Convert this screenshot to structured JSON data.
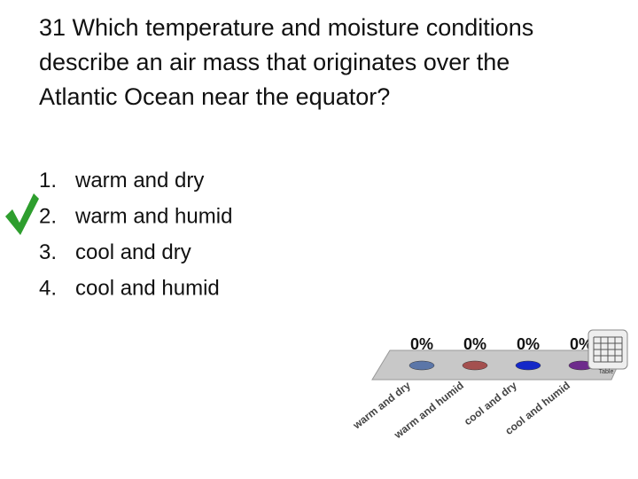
{
  "question": {
    "number": "31",
    "text": "Which temperature and moisture conditions describe an air mass that originates over the Atlantic Ocean near the equator?"
  },
  "options": [
    {
      "marker": "1.",
      "text": "warm and dry"
    },
    {
      "marker": "2.",
      "text": "warm and humid"
    },
    {
      "marker": "3.",
      "text": "cool and dry"
    },
    {
      "marker": "4.",
      "text": "cool and humid"
    }
  ],
  "chart_data": {
    "type": "bar",
    "categories": [
      "warm and dry",
      "warm and humid",
      "cool and dry",
      "cool and humid"
    ],
    "values": [
      0,
      0,
      0,
      0
    ],
    "value_labels": [
      "0%",
      "0%",
      "0%",
      "0%"
    ],
    "colors": [
      "#5b76a8",
      "#a4504f",
      "#1428c8",
      "#6e2c8c"
    ]
  },
  "table_icon": {
    "label": "Table"
  }
}
